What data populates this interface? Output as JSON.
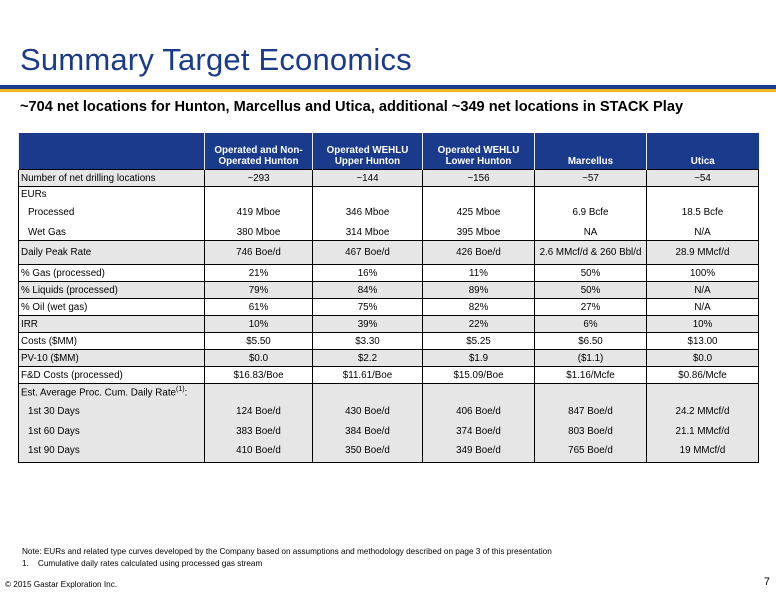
{
  "title": "Summary Target Economics",
  "subtitle": "~704 net locations for Hunton, Marcellus and Utica, additional ~349 net locations in STACK Play",
  "table": {
    "headers": [
      "",
      "Operated and Non-Operated Hunton",
      "Operated WEHLU Upper Hunton",
      "Operated WEHLU Lower Hunton",
      "Marcellus",
      "Utica"
    ],
    "rows": {
      "drilling": {
        "label": "Number of net drilling locations",
        "values": [
          "~293",
          "~144",
          "~156",
          "~57",
          "~54"
        ]
      },
      "eurs": {
        "label": "EURs"
      },
      "processed": {
        "label": "Processed",
        "values": [
          "419 Mboe",
          "346 Mboe",
          "425 Mboe",
          "6.9 Bcfe",
          "18.5 Bcfe"
        ]
      },
      "wetgas": {
        "label": "Wet Gas",
        "values": [
          "380 Mboe",
          "314 Mboe",
          "395 Mboe",
          "NA",
          "N/A"
        ]
      },
      "peak": {
        "label": "Daily Peak Rate",
        "values": [
          "746 Boe/d",
          "467 Boe/d",
          "426 Boe/d",
          "2.6 MMcf/d & 260 Bbl/d",
          "28.9 MMcf/d"
        ]
      },
      "gas": {
        "label": "% Gas (processed)",
        "values": [
          "21%",
          "16%",
          "11%",
          "50%",
          "100%"
        ]
      },
      "liquids": {
        "label": "% Liquids (processed)",
        "values": [
          "79%",
          "84%",
          "89%",
          "50%",
          "N/A"
        ]
      },
      "oil": {
        "label": "% Oil (wet gas)",
        "values": [
          "61%",
          "75%",
          "82%",
          "27%",
          "N/A"
        ]
      },
      "irr": {
        "label": "IRR",
        "values": [
          "10%",
          "39%",
          "22%",
          "6%",
          "10%"
        ]
      },
      "costs": {
        "label": "Costs ($MM)",
        "values": [
          "$5.50",
          "$3.30",
          "$5.25",
          "$6.50",
          "$13.00"
        ]
      },
      "pv10": {
        "label": "PV-10 ($MM)",
        "values": [
          "$0.0",
          "$2.2",
          "$1.9",
          "($1.1)",
          "$0.0"
        ]
      },
      "fd": {
        "label": "F&D Costs (processed)",
        "values": [
          "$16.83/Boe",
          "$11.61/Boe",
          "$15.09/Boe",
          "$1.16/Mcfe",
          "$0.86/Mcfe"
        ]
      },
      "est": {
        "label": "Est. Average Proc. Cum. Daily Rate",
        "sup": "(1)",
        "colon": ":"
      },
      "d30": {
        "label": "1st 30 Days",
        "values": [
          "124 Boe/d",
          "430 Boe/d",
          "406 Boe/d",
          "847 Boe/d",
          "24.2 MMcf/d"
        ]
      },
      "d60": {
        "label": "1st 60 Days",
        "values": [
          "383 Boe/d",
          "384 Boe/d",
          "374 Boe/d",
          "803 Boe/d",
          "21.1 MMcf/d"
        ]
      },
      "d90": {
        "label": "1st 90 Days",
        "values": [
          "410 Boe/d",
          "350 Boe/d",
          "349 Boe/d",
          "765 Boe/d",
          "19 MMcf/d"
        ]
      }
    }
  },
  "notes": {
    "note": "Note: EURs and related type curves developed by the Company based on assumptions and methodology described on page 3 of this presentation",
    "footnote": "1.    Cumulative daily rates calculated using processed gas stream"
  },
  "footer": {
    "copyright": "© 2015 Gastar Exploration Inc.",
    "page": "7"
  },
  "colors": {
    "brand_blue": "#1a3a8c",
    "accent_gold": "#f2b51c",
    "row_grey": "#e6e6e6"
  }
}
